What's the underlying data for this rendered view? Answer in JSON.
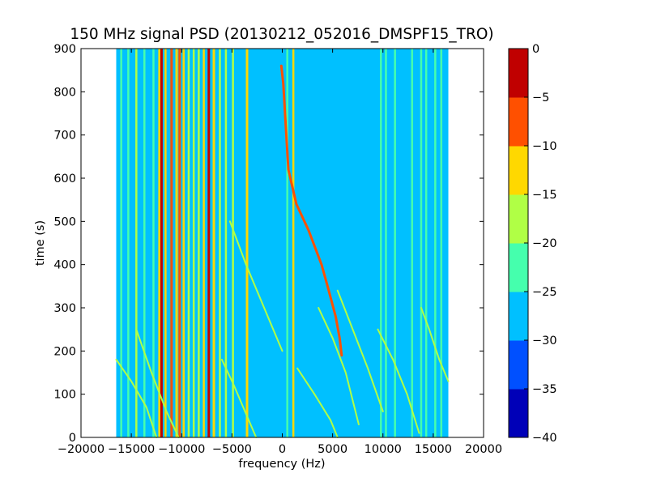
{
  "chart_data": {
    "type": "heatmap",
    "title": "150 MHz signal PSD (20130212_052016_DMSPF15_TRO)",
    "xlabel": "frequency (Hz)",
    "ylabel": "time (s)",
    "xlim": [
      -20000,
      20000
    ],
    "ylim": [
      0,
      900
    ],
    "xticks": [
      -20000,
      -15000,
      -10000,
      -5000,
      0,
      5000,
      10000,
      15000,
      20000
    ],
    "xtick_labels": [
      "−20000",
      "−15000",
      "−10000",
      "−5000",
      "0",
      "5000",
      "10000",
      "15000",
      "20000"
    ],
    "yticks": [
      0,
      100,
      200,
      300,
      400,
      500,
      600,
      700,
      800,
      900
    ],
    "ytick_labels": [
      "0",
      "100",
      "200",
      "300",
      "400",
      "500",
      "600",
      "700",
      "800",
      "900"
    ],
    "data_extent_x": [
      -16500,
      16500
    ],
    "colorbar": {
      "levels": [
        -40,
        -35,
        -30,
        -25,
        -20,
        -15,
        -10,
        -5,
        0
      ],
      "tick_labels": [
        "−40",
        "−35",
        "−30",
        "−25",
        "−20",
        "−15",
        "−10",
        "−5",
        "0"
      ],
      "colors": [
        "#0000b8",
        "#0050ff",
        "#00c0ff",
        "#45ffad",
        "#b0ff45",
        "#ffd800",
        "#ff5000",
        "#c00000"
      ]
    },
    "features": {
      "vertical_lines": [
        {
          "x": -16000,
          "level": -22
        },
        {
          "x": -15300,
          "level": -22
        },
        {
          "x": -14500,
          "level": -20
        },
        {
          "x": -13700,
          "level": -22
        },
        {
          "x": -12800,
          "level": -22
        },
        {
          "x": -12200,
          "level": -12
        },
        {
          "x": -12000,
          "level": -5
        },
        {
          "x": -11600,
          "level": -15
        },
        {
          "x": -11000,
          "level": -10
        },
        {
          "x": -10500,
          "level": -12
        },
        {
          "x": -10200,
          "level": -10
        },
        {
          "x": -9800,
          "level": -15
        },
        {
          "x": -9300,
          "level": -20
        },
        {
          "x": -8800,
          "level": -20
        },
        {
          "x": -8300,
          "level": -20
        },
        {
          "x": -7800,
          "level": -15
        },
        {
          "x": -7300,
          "level": -5
        },
        {
          "x": -6800,
          "level": -12
        },
        {
          "x": -6200,
          "level": -20
        },
        {
          "x": -5600,
          "level": -20
        },
        {
          "x": -4900,
          "level": -18
        },
        {
          "x": -3500,
          "level": -12
        },
        {
          "x": 500,
          "level": -22
        },
        {
          "x": 1100,
          "level": -15
        },
        {
          "x": 9800,
          "level": -22
        },
        {
          "x": 10300,
          "level": -22
        },
        {
          "x": 11200,
          "level": -22
        },
        {
          "x": 12900,
          "level": -22
        },
        {
          "x": 13800,
          "level": -22
        },
        {
          "x": 14300,
          "level": -22
        },
        {
          "x": 15200,
          "level": -22
        },
        {
          "x": 15800,
          "level": -22
        }
      ],
      "doppler_traces": [
        {
          "name": "main",
          "level": -10,
          "points": [
            [
              -100,
              860
            ],
            [
              100,
              820
            ],
            [
              600,
              620
            ],
            [
              1400,
              540
            ],
            [
              2600,
              480
            ],
            [
              3900,
              400
            ],
            [
              4500,
              350
            ],
            [
              5300,
              280
            ],
            [
              5700,
              230
            ],
            [
              5900,
              190
            ]
          ]
        },
        {
          "level": -20,
          "points": [
            [
              -16500,
              180
            ],
            [
              -15000,
              130
            ],
            [
              -13500,
              70
            ],
            [
              -12500,
              0
            ]
          ]
        },
        {
          "level": -20,
          "points": [
            [
              -14500,
              250
            ],
            [
              -13000,
              150
            ],
            [
              -11500,
              60
            ],
            [
              -10300,
              0
            ]
          ]
        },
        {
          "level": -20,
          "points": [
            [
              -6000,
              180
            ],
            [
              -4800,
              120
            ],
            [
              -3700,
              60
            ],
            [
              -2600,
              0
            ]
          ]
        },
        {
          "level": -20,
          "points": [
            [
              -5200,
              500
            ],
            [
              -3600,
              400
            ],
            [
              -1800,
              300
            ],
            [
              0,
              200
            ]
          ]
        },
        {
          "level": -20,
          "points": [
            [
              1500,
              160
            ],
            [
              3200,
              100
            ],
            [
              4800,
              40
            ],
            [
              5500,
              0
            ]
          ]
        },
        {
          "level": -20,
          "points": [
            [
              3600,
              300
            ],
            [
              5000,
              230
            ],
            [
              6300,
              150
            ],
            [
              7600,
              30
            ]
          ]
        },
        {
          "level": -20,
          "points": [
            [
              5500,
              340
            ],
            [
              7000,
              250
            ],
            [
              8500,
              160
            ],
            [
              10000,
              60
            ]
          ]
        },
        {
          "level": -20,
          "points": [
            [
              9500,
              250
            ],
            [
              11000,
              180
            ],
            [
              12400,
              100
            ],
            [
              13600,
              10
            ]
          ]
        },
        {
          "level": -20,
          "points": [
            [
              13800,
              300
            ],
            [
              14600,
              250
            ],
            [
              15600,
              180
            ],
            [
              16500,
              130
            ]
          ]
        }
      ]
    }
  }
}
